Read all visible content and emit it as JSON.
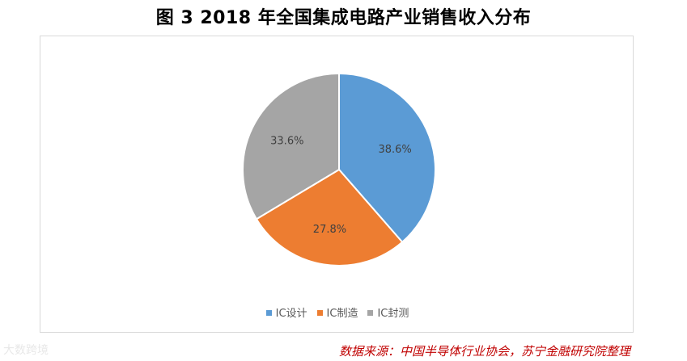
{
  "title": "图 3 2018 年全国集成电路产业销售收入分布",
  "source": "数据来源：中国半导体行业协会，苏宁金融研究院整理",
  "watermark": "大数跨境",
  "chart_data": {
    "type": "pie",
    "title": "",
    "slices": [
      {
        "label": "IC设计",
        "value": 38.6,
        "display": "38.6%",
        "color": "#5b9bd5"
      },
      {
        "label": "IC制造",
        "value": 27.8,
        "display": "27.8%",
        "color": "#ed7d31"
      },
      {
        "label": "IC封测",
        "value": 33.6,
        "display": "33.6%",
        "color": "#a5a5a5"
      }
    ],
    "legend_position": "bottom",
    "start_angle": "12 o'clock",
    "direction": "clockwise"
  }
}
